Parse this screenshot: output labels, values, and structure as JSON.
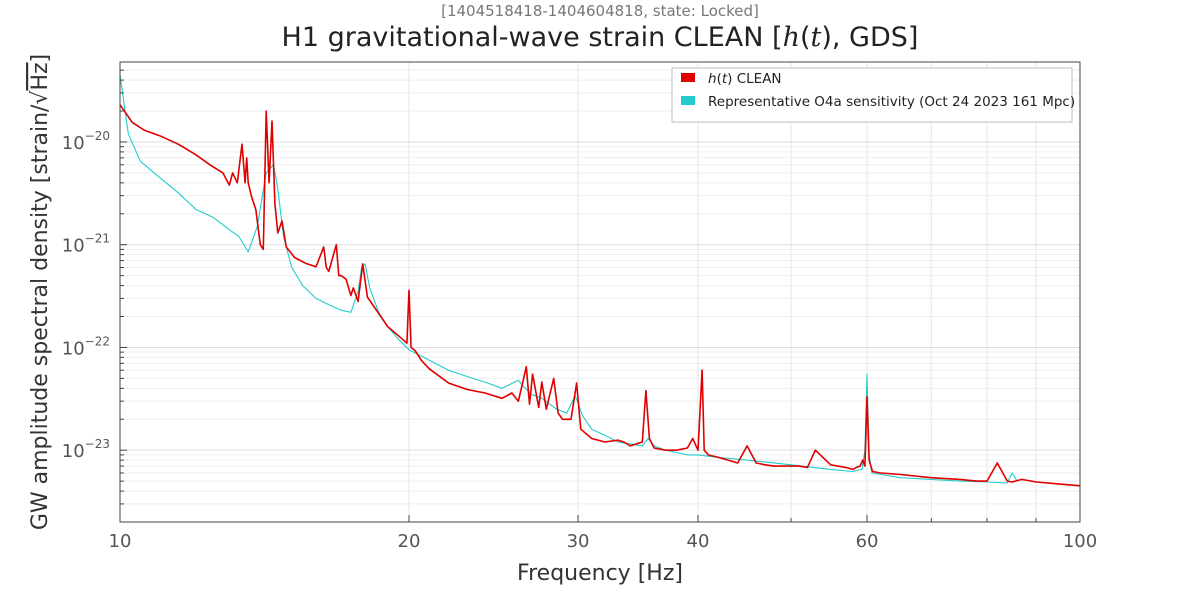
{
  "supertitle": "[1404518418-1404604818, state: Locked]",
  "title_pre": "H1 gravitational-wave strain CLEAN [",
  "title_italic": "h",
  "title_mid": "(",
  "title_italic2": "t",
  "title_post": "), GDS]",
  "colors": {
    "clean": "#e00000",
    "reference": "#22cccc",
    "grid": "#e6e6e6",
    "axes": "#444444"
  },
  "chart_data": {
    "type": "line",
    "title": "H1 gravitational-wave strain CLEAN [h(t), GDS]",
    "subtitle": "[1404518418-1404604818, state: Locked]",
    "xlabel": "Frequency [Hz]",
    "ylabel_pre": "GW amplitude spectral density [strain/",
    "ylabel_sqrt": "√",
    "ylabel_unit": "Hz",
    "ylabel_post": "]",
    "xscale": "log",
    "yscale": "log",
    "xlim": [
      10,
      100
    ],
    "ylim": [
      2e-24,
      6e-20
    ],
    "xticks": [
      {
        "value": 10,
        "label": "10"
      },
      {
        "value": 20,
        "label": "20"
      },
      {
        "value": 30,
        "label": "30"
      },
      {
        "value": 40,
        "label": "40"
      },
      {
        "value": 60,
        "label": "60"
      },
      {
        "value": 100,
        "label": "100"
      }
    ],
    "yticks": [
      {
        "value": 1e-23,
        "base": "10",
        "exp": "−23"
      },
      {
        "value": 1e-22,
        "base": "10",
        "exp": "−22"
      },
      {
        "value": 1e-21,
        "base": "10",
        "exp": "−21"
      },
      {
        "value": 1e-20,
        "base": "10",
        "exp": "−20"
      }
    ],
    "grid": true,
    "legend_position": "top-right",
    "series": [
      {
        "name": "CLEAN",
        "name_italic": "h",
        "name_paren_open": "(",
        "name_italic2": "t",
        "name_paren_close": ")",
        "x": [
          10,
          10.3,
          10.6,
          11,
          11.5,
          12,
          12.4,
          12.8,
          13.0,
          13.1,
          13.25,
          13.4,
          13.5,
          13.55,
          13.6,
          13.7,
          13.85,
          14.0,
          14.1,
          14.2,
          14.3,
          14.4,
          14.5,
          14.6,
          14.75,
          14.9,
          15.2,
          15.6,
          16.0,
          16.3,
          16.4,
          16.5,
          16.8,
          16.9,
          17.0,
          17.2,
          17.4,
          17.5,
          17.7,
          17.9,
          18.1,
          18.5,
          19.0,
          19.5,
          19.9,
          20.0,
          20.1,
          20.3,
          20.6,
          21,
          22,
          23,
          24,
          25,
          25.6,
          26,
          26.5,
          26.7,
          26.9,
          27.3,
          27.5,
          27.8,
          28.3,
          28.6,
          28.9,
          29.5,
          29.9,
          30.2,
          31,
          32,
          33,
          33.5,
          34,
          35,
          35.3,
          35.6,
          36,
          37,
          38,
          39,
          39.5,
          40,
          40.4,
          40.6,
          41,
          42,
          43,
          44,
          45,
          46,
          47,
          48,
          49,
          50,
          51,
          52,
          53,
          55,
          57,
          58,
          58.5,
          59,
          59.4,
          59.7,
          60,
          60.3,
          60.8,
          62,
          65,
          70,
          75,
          78,
          80,
          82,
          84,
          85,
          87,
          90,
          95,
          100
        ],
        "y": [
          2.3e-20,
          1.55e-20,
          1.3e-20,
          1.15e-20,
          9.5e-21,
          7.5e-21,
          6e-21,
          5e-21,
          3.8e-21,
          5e-21,
          4e-21,
          9.5e-21,
          4e-21,
          7e-21,
          4e-21,
          3e-21,
          2.2e-21,
          1e-21,
          9e-22,
          2e-20,
          4e-21,
          1.6e-20,
          2.5e-21,
          1.3e-21,
          1.7e-21,
          9.5e-22,
          7.5e-22,
          6.6e-22,
          6.1e-22,
          9.5e-22,
          6e-22,
          5.5e-22,
          1e-21,
          5e-22,
          5e-22,
          4.6e-22,
          3.2e-22,
          3.8e-22,
          2.8e-22,
          6.5e-22,
          3.1e-22,
          2.3e-22,
          1.6e-22,
          1.3e-22,
          1.1e-22,
          3.6e-22,
          1e-22,
          9.3e-23,
          7.5e-23,
          6.2e-23,
          4.5e-23,
          3.9e-23,
          3.6e-23,
          3.2e-23,
          3.6e-23,
          3e-23,
          6.5e-23,
          2.8e-23,
          5.5e-23,
          2.6e-23,
          4.6e-23,
          2.5e-23,
          5e-23,
          2.3e-23,
          2e-23,
          2e-23,
          4.5e-23,
          1.6e-23,
          1.3e-23,
          1.2e-23,
          1.25e-23,
          1.2e-23,
          1.1e-23,
          1.2e-23,
          3.8e-23,
          1.3e-23,
          1.05e-23,
          1e-23,
          1e-23,
          1.05e-23,
          1.3e-23,
          1e-23,
          6e-23,
          1e-23,
          9e-24,
          8.5e-24,
          8e-24,
          7.5e-24,
          1.1e-23,
          7.5e-24,
          7.2e-24,
          7e-24,
          7e-24,
          7e-24,
          7e-24,
          6.8e-24,
          1e-23,
          7.2e-24,
          6.8e-24,
          6.5e-24,
          6.8e-24,
          7e-24,
          8e-24,
          7e-24,
          3.3e-23,
          8e-24,
          6.2e-24,
          6e-24,
          5.8e-24,
          5.4e-24,
          5.2e-24,
          5e-24,
          5e-24,
          7.5e-24,
          5e-24,
          4.9e-24,
          5.2e-24,
          4.9e-24,
          4.7e-24,
          4.5e-24
        ]
      },
      {
        "name": "Representative O4a sensitivity (Oct 24 2023 161 Mpc)",
        "x": [
          10,
          10.2,
          10.5,
          11,
          11.5,
          12,
          12.5,
          13,
          13.3,
          13.6,
          13.9,
          14.2,
          14.45,
          14.6,
          14.8,
          15.1,
          15.5,
          16,
          16.5,
          17,
          17.4,
          17.7,
          17.85,
          18,
          18.2,
          18.6,
          19,
          19.5,
          20,
          21,
          22,
          23,
          24,
          25,
          26.0,
          26.3,
          26.8,
          27.5,
          28.5,
          29.2,
          29.8,
          30.3,
          31,
          32,
          33,
          34,
          35,
          35.5,
          36,
          37,
          38,
          39,
          40,
          42,
          45,
          50,
          55,
          58,
          59.3,
          59.7,
          60,
          60.3,
          60.7,
          62,
          65,
          70,
          75,
          80,
          84,
          85,
          86
        ],
        "y": [
          4.5e-20,
          1.2e-20,
          6.5e-21,
          4.5e-21,
          3.2e-21,
          2.2e-21,
          1.85e-21,
          1.4e-21,
          1.2e-21,
          8.5e-22,
          1.5e-21,
          5e-21,
          6e-21,
          3.5e-21,
          1.2e-21,
          6e-22,
          4e-22,
          3e-22,
          2.6e-22,
          2.3e-22,
          2.2e-22,
          3.5e-22,
          6e-22,
          6.5e-22,
          3.8e-22,
          2.2e-22,
          1.6e-22,
          1.2e-22,
          9.5e-23,
          7.5e-23,
          6e-23,
          5.2e-23,
          4.6e-23,
          4e-23,
          4.8e-23,
          4.2e-23,
          3.5e-23,
          3.2e-23,
          2.5e-23,
          2.3e-23,
          3.4e-23,
          2.2e-23,
          1.6e-23,
          1.4e-23,
          1.2e-23,
          1.15e-23,
          1.1e-23,
          1.3e-23,
          1.1e-23,
          1e-23,
          9.5e-24,
          9e-24,
          9e-24,
          8.5e-24,
          8e-24,
          7.2e-24,
          6.5e-24,
          6.2e-24,
          6.5e-24,
          1e-23,
          5.5e-23,
          9e-24,
          6e-24,
          5.8e-24,
          5.4e-24,
          5.2e-24,
          5e-24,
          4.9e-24,
          4.8e-24,
          6e-24,
          5e-24
        ]
      }
    ]
  }
}
